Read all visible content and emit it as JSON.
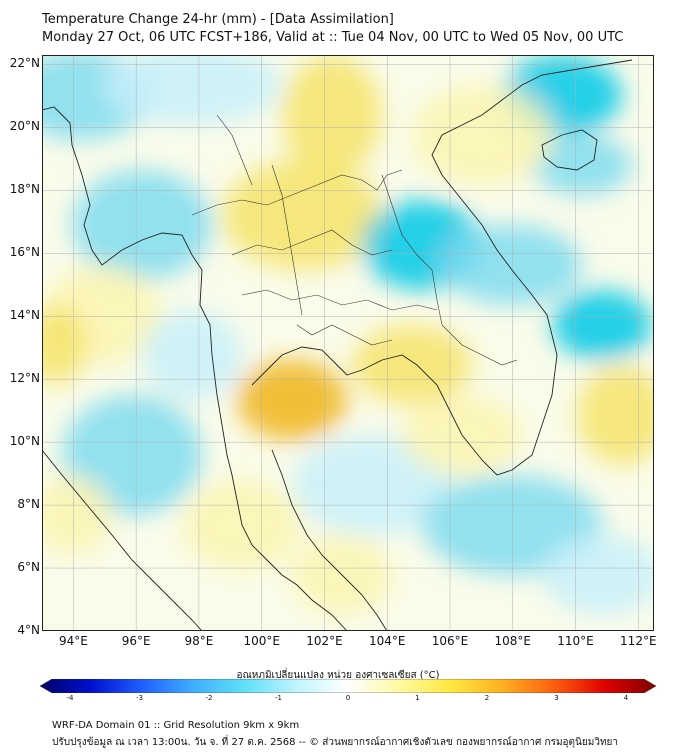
{
  "header": {
    "title": "Temperature Change 24-hr (mm) - [Data Assimilation]",
    "subtitle": "Monday 27 Oct, 06 UTC FCST+186, Valid at :: Tue 04 Nov, 00 UTC to Wed 05 Nov, 00 UTC"
  },
  "map": {
    "lat_labels": [
      "22°N",
      "20°N",
      "18°N",
      "16°N",
      "14°N",
      "12°N",
      "10°N",
      "8°N",
      "6°N",
      "4°N"
    ],
    "lon_labels": [
      "94°E",
      "96°E",
      "98°E",
      "100°E",
      "102°E",
      "104°E",
      "106°E",
      "108°E",
      "110°E",
      "112°E"
    ],
    "lat_range": [
      4,
      22.3
    ],
    "lon_range": [
      93,
      112.5
    ],
    "colors": {
      "cold_strong": "#00c8e8",
      "cold_mid": "#7fdcf0",
      "cold_light": "#c8f0fa",
      "neutral": "#fafcea",
      "warm_light": "#fbf4b0",
      "warm_mid": "#f6e46a",
      "warm_strong": "#f2cc28",
      "warm_peak": "#f0b418",
      "coastline": "#222222",
      "grid": "#b0b0b0"
    }
  },
  "colorbar": {
    "title": "อุณหภูมิเปลี่ยนแปลง หน่วย องศาเซลเซียส (°C)",
    "tick_labels": [
      "-4",
      "-3",
      "-2",
      "-1",
      "0",
      "1",
      "2",
      "3",
      "4"
    ],
    "colors": [
      "#000066",
      "#0010d0",
      "#2060ff",
      "#40b0ff",
      "#60e0f8",
      "#c0f4ff",
      "#ffffff",
      "#fffaa0",
      "#ffe840",
      "#ffb020",
      "#ff6010",
      "#e00000",
      "#800000"
    ]
  },
  "footer": {
    "line1": "WRF-DA Domain 01 :: Grid Resolution 9km x 9km",
    "line2": "ปรับปรุงข้อมูล ณ เวลา 13:00น. วัน จ. ที่ 27 ต.ค. 2568 -- © ส่วนพยากรณ์อากาศเชิงตัวเลข กองพยากรณ์อากาศ กรมอุตุนิยมวิทยา"
  }
}
